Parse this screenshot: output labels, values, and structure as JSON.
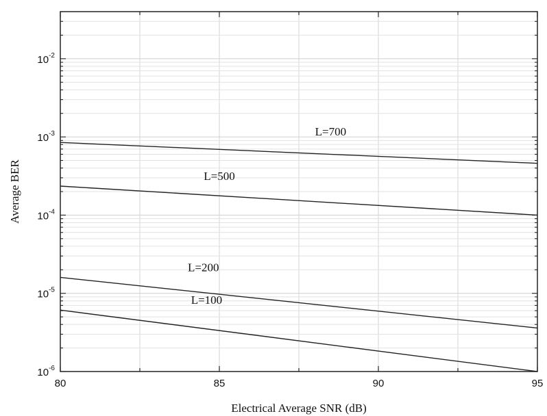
{
  "chart_data": {
    "type": "line",
    "title": "",
    "xlabel": "Electrical Average SNR (dB)",
    "ylabel": "Average BER",
    "xlim": [
      80,
      95
    ],
    "ylim": [
      1e-06,
      0.04
    ],
    "yscale": "log",
    "grid": true,
    "x_ticks": [
      "80",
      "85",
      "90",
      "95"
    ],
    "y_ticks": [
      {
        "base": "10",
        "exp": "-6",
        "value": 1e-06
      },
      {
        "base": "10",
        "exp": "-5",
        "value": 1e-05
      },
      {
        "base": "10",
        "exp": "-4",
        "value": 0.0001
      },
      {
        "base": "10",
        "exp": "-3",
        "value": 0.001
      },
      {
        "base": "10",
        "exp": "-2",
        "value": 0.01
      }
    ],
    "series": [
      {
        "name": "L=700",
        "x": [
          80,
          95
        ],
        "y": [
          0.00085,
          0.00046
        ],
        "label_at": [
          88.5,
          0.00092
        ]
      },
      {
        "name": "L=500",
        "x": [
          80,
          95
        ],
        "y": [
          0.000235,
          0.0001
        ],
        "label_at": [
          85,
          0.00025
        ]
      },
      {
        "name": "L=200",
        "x": [
          80,
          95
        ],
        "y": [
          1.6e-05,
          3.6e-06
        ],
        "label_at": [
          84.5,
          1.7e-05
        ]
      },
      {
        "name": "L=100",
        "x": [
          80,
          95
        ],
        "y": [
          6.1e-06,
          1e-06
        ],
        "label_at": [
          84.6,
          6.5e-06
        ]
      }
    ]
  }
}
